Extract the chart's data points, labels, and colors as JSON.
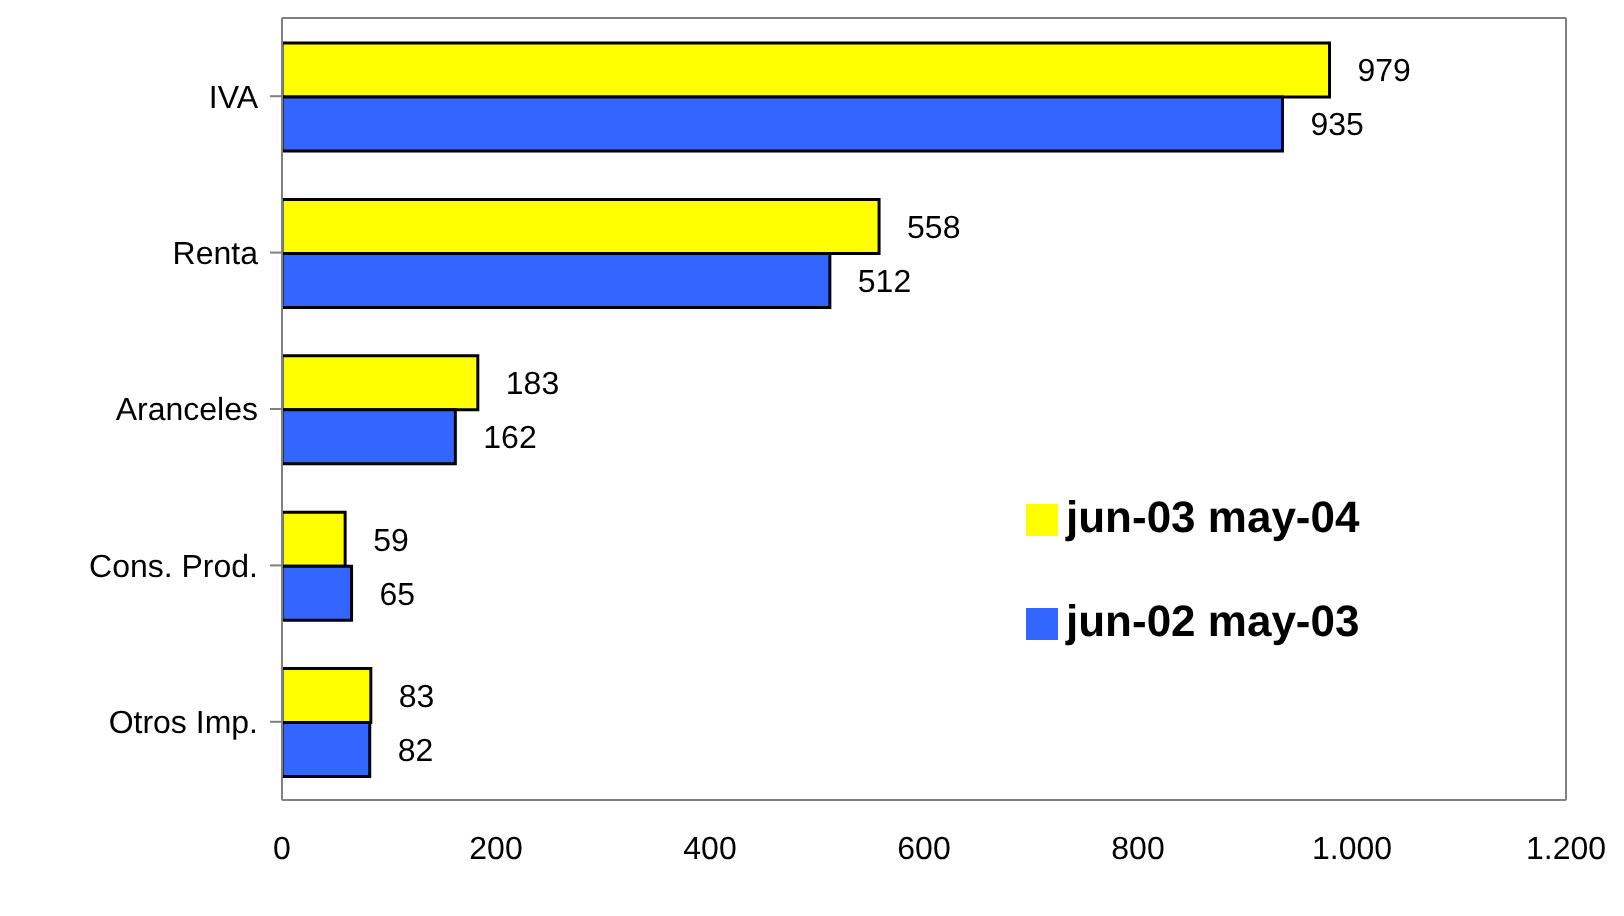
{
  "chart_data": {
    "type": "bar",
    "orientation": "horizontal",
    "categories": [
      "IVA",
      "Renta",
      "Aranceles",
      "Cons. Prod.",
      "Otros Imp."
    ],
    "series": [
      {
        "name": "jun-03 may-04",
        "color": "#ffff00",
        "values": [
          979,
          558,
          183,
          59,
          83
        ]
      },
      {
        "name": "jun-02 may-03",
        "color": "#3366ff",
        "values": [
          935,
          512,
          162,
          65,
          82
        ]
      }
    ],
    "xlim": [
      0,
      1200
    ],
    "xticks": [
      0,
      200,
      400,
      600,
      800,
      {
        "value": 1000,
        "label": "1.000"
      },
      {
        "value": 1200,
        "label": "1.200"
      }
    ],
    "data_labels": true,
    "legend": "right",
    "grid": false
  }
}
